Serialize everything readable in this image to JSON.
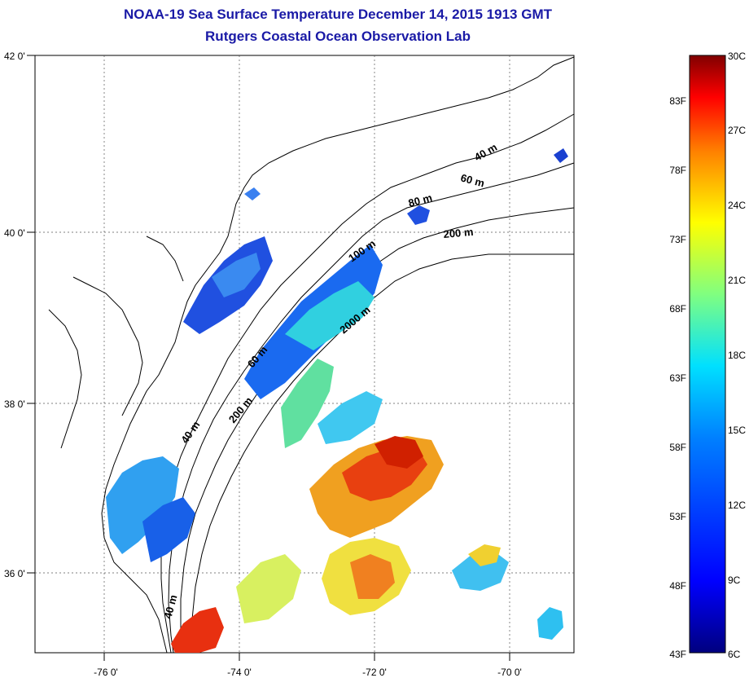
{
  "title": {
    "line1": "NOAA-19 Sea Surface Temperature December 14, 2015 1913 GMT",
    "line2": "Rutgers Coastal Ocean Observation Lab"
  },
  "map": {
    "lon_ticks": [
      "-76 0'",
      "-74 0'",
      "-72 0'",
      "-70 0'"
    ],
    "lat_ticks": [
      "42 0'",
      "40 0'",
      "38 0'",
      "36 0'"
    ],
    "depth_labels": [
      "40 m",
      "60 m",
      "80 m",
      "200 m",
      "100 m",
      "2000 m",
      "60 m",
      "200 m",
      "40 m",
      "40 m"
    ],
    "lon_range": [
      -77,
      -69
    ],
    "lat_range": [
      35,
      42
    ]
  },
  "colorbar": {
    "celsius": [
      "30C",
      "27C",
      "24C",
      "21C",
      "18C",
      "15C",
      "12C",
      "9C",
      "6C"
    ],
    "fahrenheit": [
      "83F",
      "78F",
      "73F",
      "68F",
      "63F",
      "58F",
      "53F",
      "48F",
      "43F"
    ],
    "colors": [
      "#800000",
      "#ff0000",
      "#ff8000",
      "#ffff00",
      "#80ff80",
      "#00ffff",
      "#0080ff",
      "#0000ff",
      "#000080"
    ]
  }
}
